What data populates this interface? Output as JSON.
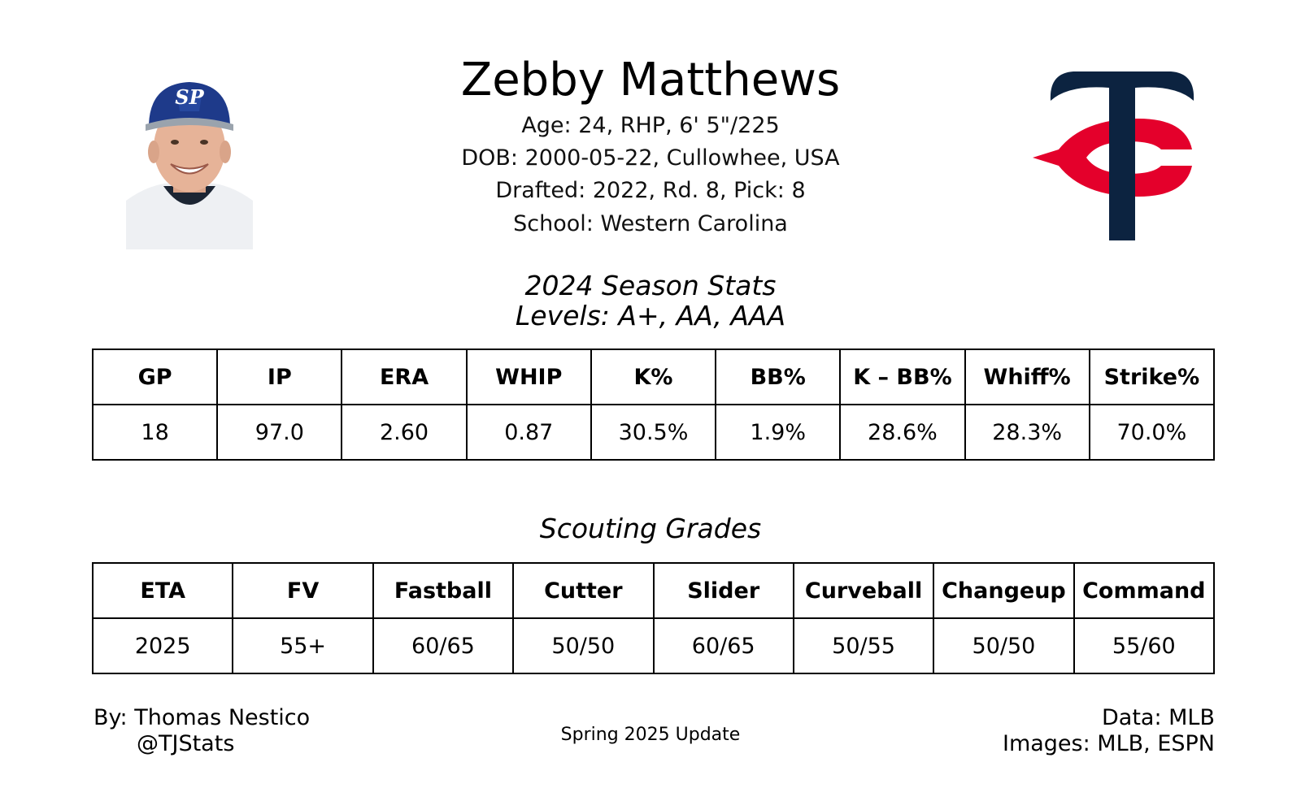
{
  "player": {
    "name": "Zebby Matthews",
    "bio": [
      "Age: 24, RHP, 6' 5\"/225",
      "DOB: 2000-05-22, Cullowhee, USA",
      "Drafted: 2022, Rd. 8, Pick: 8",
      "School: Western Carolina"
    ],
    "cap_logo_letters": "SP"
  },
  "team_logo": {
    "icon": "twins-tc-logo",
    "colors": {
      "navy": "#0c2340",
      "red": "#e4002b"
    }
  },
  "season_stats": {
    "title": "2024 Season Stats",
    "levels": "Levels: A+, AA, AAA",
    "headers": [
      "GP",
      "IP",
      "ERA",
      "WHIP",
      "K%",
      "BB%",
      "K – BB%",
      "Whiff%",
      "Strike%"
    ],
    "values": [
      "18",
      "97.0",
      "2.60",
      "0.87",
      "30.5%",
      "1.9%",
      "28.6%",
      "28.3%",
      "70.0%"
    ]
  },
  "scouting": {
    "title": "Scouting Grades",
    "headers": [
      "ETA",
      "FV",
      "Fastball",
      "Cutter",
      "Slider",
      "Curveball",
      "Changeup",
      "Command"
    ],
    "values": [
      "2025",
      "55+",
      "60/65",
      "50/50",
      "60/65",
      "50/55",
      "50/50",
      "55/60"
    ]
  },
  "footer": {
    "by_line": "By: Thomas Nestico",
    "handle": "@TJStats",
    "update": "Spring 2025 Update",
    "data_source": "Data: MLB",
    "images_source": "Images: MLB, ESPN"
  }
}
